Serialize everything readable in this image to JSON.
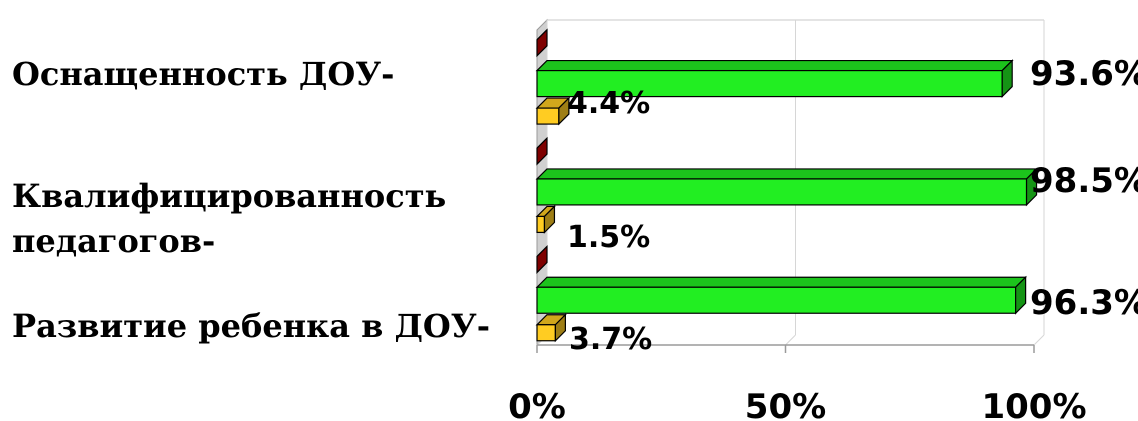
{
  "chart_data": {
    "type": "bar",
    "orientation": "horizontal",
    "style": "3d",
    "categories": [
      "Оснащенность ДОУ-",
      "Квалифицированность педагогов-",
      "Развитие ребенка в ДОУ-"
    ],
    "category_lines": [
      [
        "Оснащенность ДОУ-"
      ],
      [
        "Квалифицированность",
        "педагогов-"
      ],
      [
        "Развитие ребенка в ДОУ-"
      ]
    ],
    "series": [
      {
        "color": "#cc0000",
        "values": [
          0,
          0,
          0
        ],
        "labels": [
          "",
          "",
          ""
        ]
      },
      {
        "color": "#22ee22",
        "values": [
          93.6,
          98.5,
          96.3
        ],
        "labels": [
          "93.6%",
          "98.5%",
          "96.3%"
        ]
      },
      {
        "color": "#ffcc22",
        "values": [
          4.4,
          1.5,
          3.7
        ],
        "labels": [
          "4.4%",
          "1.5%",
          "3.7%"
        ]
      }
    ],
    "xlim": [
      0,
      100
    ],
    "x_ticks": [
      "0%",
      "50%",
      "100%"
    ],
    "grid": true,
    "legend": "none"
  }
}
